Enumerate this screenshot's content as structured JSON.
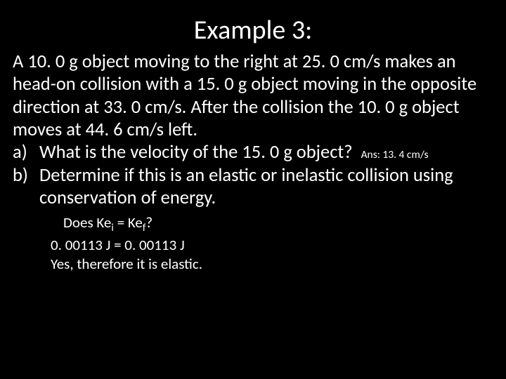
{
  "background_color": "#000000",
  "text_color": "#ffffff",
  "title": "Example 3:",
  "problem": "A 10. 0 g object moving to the right at 25. 0 cm/s makes an head-on collision with a 15. 0 g object moving in the opposite direction at 33. 0 cm/s. After the collision the 10. 0 g object moves at 44. 6 cm/s left.",
  "items": [
    {
      "marker": "a)",
      "text": "What is the velocity of the 15. 0 g object?",
      "answer_inline": "Ans: 13. 4 cm/s"
    },
    {
      "marker": "b)",
      "text": "Determine if this is an elastic or inelastic collision using conservation of energy."
    }
  ],
  "work": {
    "line1_pre": "Does Ke",
    "line1_sub1": "i",
    "line1_mid": " = Ke",
    "line1_sub2": "f",
    "line1_post": "?",
    "line2": "0. 00113 J = 0. 00113 J",
    "line3": "Yes, therefore it is elastic."
  }
}
